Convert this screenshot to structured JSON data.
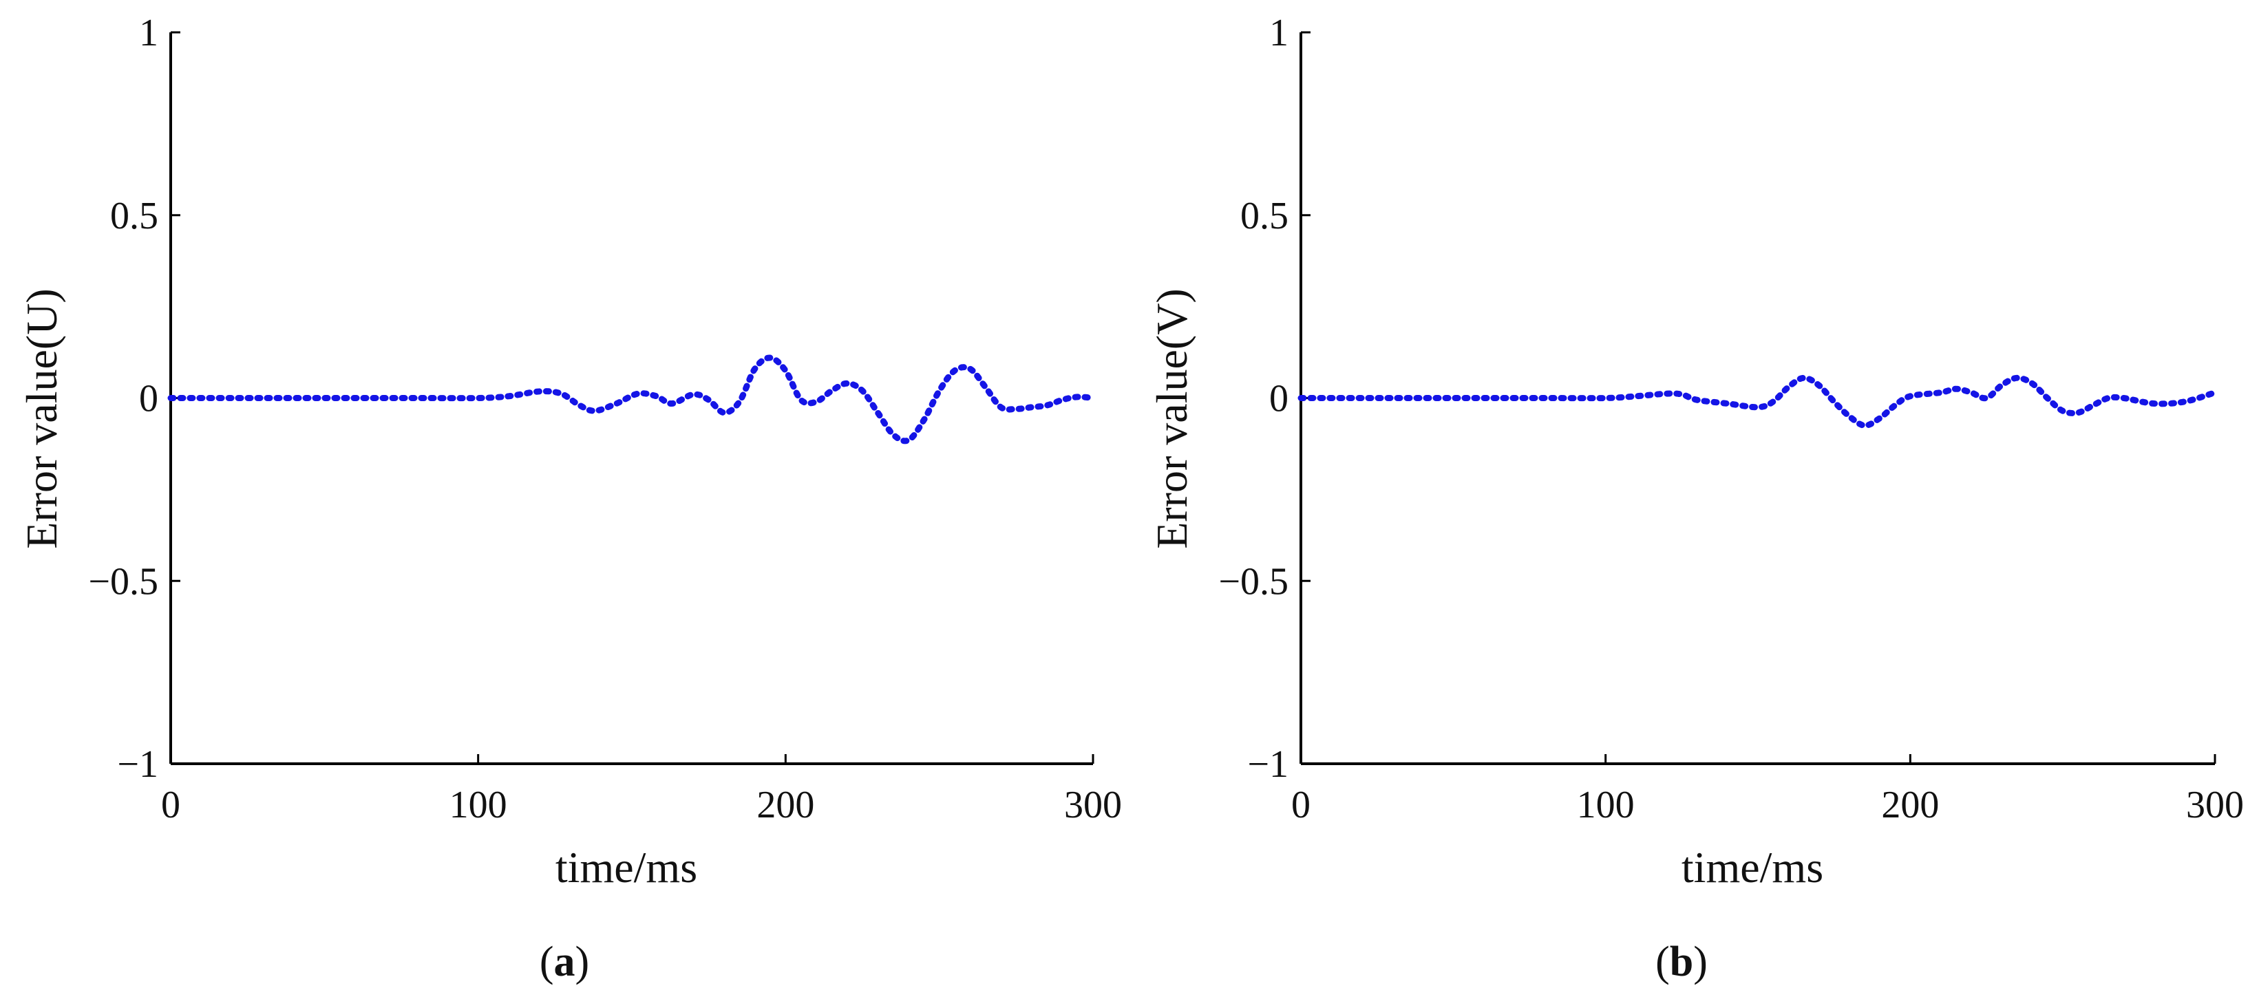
{
  "colors": {
    "series": "#1414e6",
    "axis": "#000000"
  },
  "chart_data": [
    {
      "type": "line",
      "panel_label": "a",
      "xlabel": "time/ms",
      "ylabel": "Error value(U)",
      "xlim": [
        0,
        300
      ],
      "ylim": [
        -1,
        1
      ],
      "xticks": [
        0,
        100,
        200,
        300
      ],
      "yticks": [
        -1,
        -0.5,
        0,
        0.5,
        1
      ],
      "xtick_labels": [
        "0",
        "100",
        "200",
        "300"
      ],
      "ytick_labels": [
        "−1",
        "−0.5",
        "0",
        "0.5",
        "1"
      ],
      "grid": false,
      "series": [
        {
          "x": [
            0,
            20,
            40,
            60,
            80,
            100,
            110,
            120,
            127,
            133,
            138,
            145,
            152,
            158,
            163,
            170,
            175,
            180,
            185,
            190,
            195,
            200,
            205,
            210,
            215,
            220,
            225,
            230,
            235,
            240,
            245,
            250,
            255,
            260,
            265,
            270,
            275,
            280,
            285,
            290,
            295,
            300
          ],
          "y": [
            0,
            0,
            0,
            0,
            0,
            0,
            0.005,
            0.018,
            0.012,
            -0.02,
            -0.035,
            -0.015,
            0.012,
            0.005,
            -0.015,
            0.01,
            -0.005,
            -0.04,
            -0.01,
            0.08,
            0.11,
            0.075,
            -0.005,
            -0.01,
            0.02,
            0.04,
            0.02,
            -0.04,
            -0.1,
            -0.115,
            -0.06,
            0.02,
            0.075,
            0.08,
            0.03,
            -0.025,
            -0.03,
            -0.025,
            -0.02,
            -0.005,
            0.003,
            0
          ]
        }
      ]
    },
    {
      "type": "line",
      "panel_label": "b",
      "xlabel": "time/ms",
      "ylabel": "Error value(V)",
      "xlim": [
        0,
        300
      ],
      "ylim": [
        -1,
        1
      ],
      "xticks": [
        0,
        100,
        200,
        300
      ],
      "yticks": [
        -1,
        -0.5,
        0,
        0.5,
        1
      ],
      "xtick_labels": [
        "0",
        "100",
        "200",
        "300"
      ],
      "ytick_labels": [
        "−1",
        "−0.5",
        "0",
        "0.5",
        "1"
      ],
      "grid": false,
      "series": [
        {
          "x": [
            0,
            20,
            40,
            60,
            80,
            100,
            110,
            120,
            125,
            130,
            140,
            150,
            155,
            160,
            165,
            170,
            175,
            180,
            185,
            190,
            195,
            200,
            210,
            215,
            220,
            225,
            230,
            235,
            240,
            245,
            250,
            255,
            260,
            265,
            270,
            280,
            290,
            300
          ],
          "y": [
            0,
            0,
            0,
            0,
            0,
            0,
            0.005,
            0.012,
            0.01,
            -0.005,
            -0.015,
            -0.025,
            -0.01,
            0.03,
            0.055,
            0.035,
            -0.01,
            -0.05,
            -0.075,
            -0.055,
            -0.02,
            0.005,
            0.015,
            0.025,
            0.015,
            0.0,
            0.035,
            0.055,
            0.04,
            0.0,
            -0.035,
            -0.04,
            -0.02,
            0.0,
            0.0,
            -0.015,
            -0.01,
            0.015
          ]
        }
      ]
    }
  ]
}
